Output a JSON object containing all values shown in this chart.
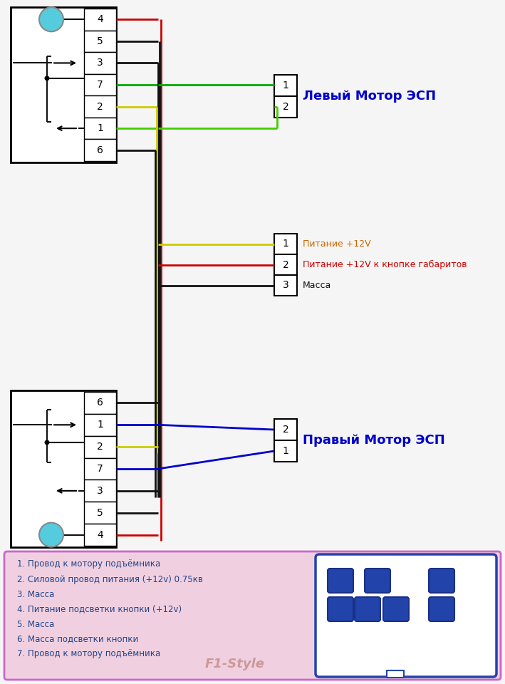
{
  "bg_color": "#f5f5f5",
  "colors": {
    "red": "#cc0000",
    "green_dark": "#00aa00",
    "green_light": "#44cc00",
    "yellow": "#cccc00",
    "black": "#111111",
    "blue": "#0000cc",
    "orange": "#cc6600",
    "cyan": "#55ccdd",
    "pin_fill": "#2244aa",
    "legend_bg": "#f0d0e0",
    "legend_border": "#cc66cc"
  },
  "left_top_pins": [
    "4",
    "5",
    "3",
    "7",
    "2",
    "1",
    "6"
  ],
  "right_top_label": "Левый Мотор ЭСП",
  "middle_pins": [
    "1",
    "2",
    "3"
  ],
  "middle_labels": [
    "Питание +12V",
    "Питание +12V к кнопке габаритов",
    "Масса"
  ],
  "middle_label_colors": [
    "#cc6600",
    "#cc0000",
    "#111111"
  ],
  "right_bot_label": "Правый Мотор ЭСП",
  "left_bot_pins": [
    "6",
    "1",
    "2",
    "7",
    "3",
    "5",
    "4"
  ],
  "legend_lines": [
    "1. Провод к мотору подъёмника",
    "2. Силовой провод питания (+12v) 0.75кв",
    "3. Масса",
    "4. Питание подсветки кнопки (+12v)",
    "5. Масса",
    "6. Масса подсветки кнопки",
    "7. Провод к мотору подъёмника"
  ],
  "watermark": "F1-Style"
}
